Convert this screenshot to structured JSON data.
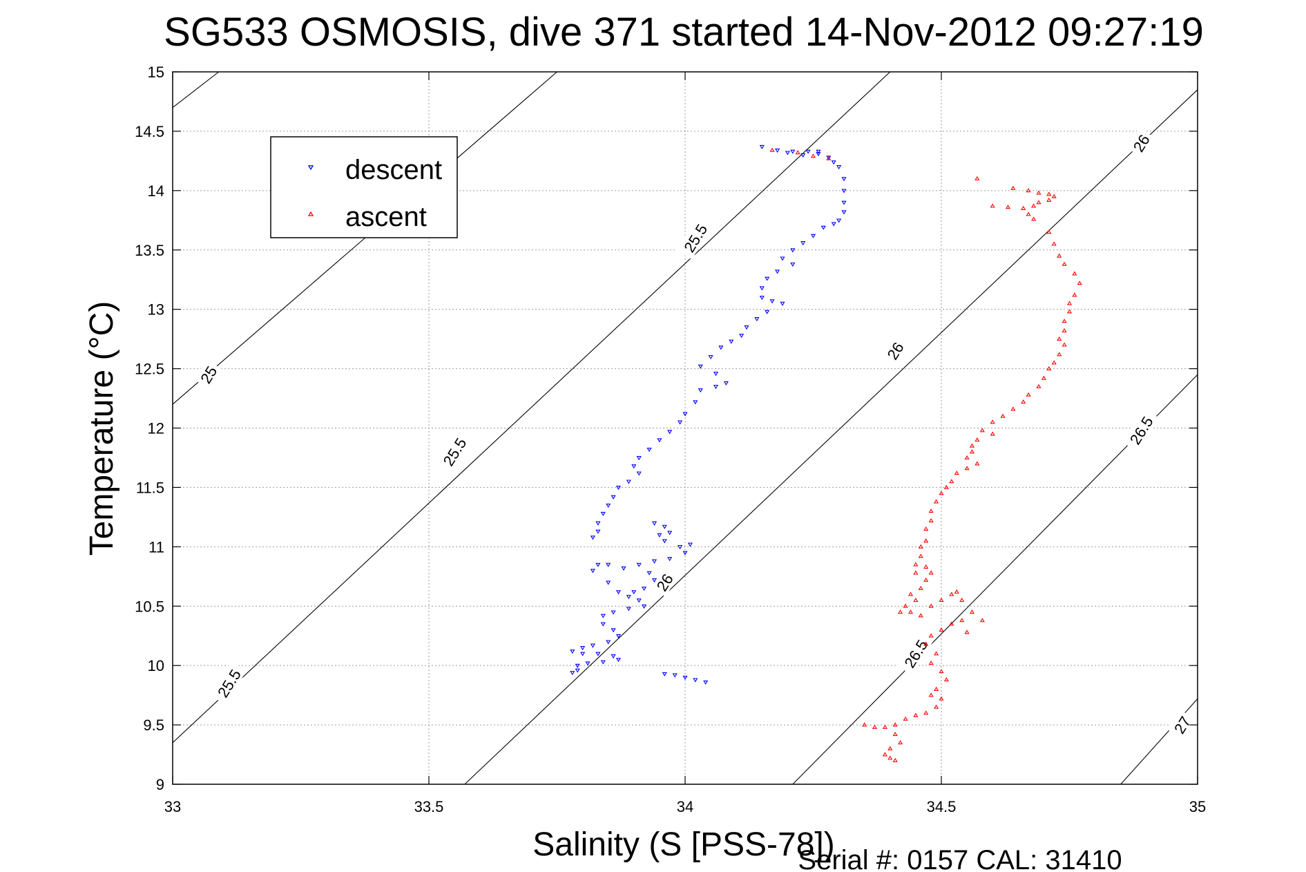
{
  "chart_data": {
    "type": "scatter",
    "title": "SG533 OSMOSIS, dive 371 started 14-Nov-2012 09:27:19",
    "xlabel": "Salinity (S [PSS-78])",
    "ylabel": "Temperature (°C)",
    "xlim": [
      33,
      35
    ],
    "ylim": [
      9,
      15
    ],
    "x_ticks": [
      "33",
      "33.5",
      "34",
      "34.5",
      "35"
    ],
    "y_ticks": [
      "9",
      "9.5",
      "10",
      "10.5",
      "11",
      "11.5",
      "12",
      "12.5",
      "13",
      "13.5",
      "14",
      "14.5",
      "15"
    ],
    "grid": true,
    "legend_position": "top-left",
    "footer": "Serial #: 0157  CAL: 31410",
    "colors": {
      "descent": "#0000ff",
      "ascent": "#ff0000",
      "contour": "#000000",
      "grid": "#9a9a9a"
    },
    "contours": [
      {
        "level": "25",
        "points": [
          [
            33.0,
            14.7
          ],
          [
            33.09,
            15.0
          ]
        ]
      },
      {
        "level": "25",
        "points": [
          [
            33.0,
            12.2
          ],
          [
            33.75,
            15.0
          ]
        ]
      },
      {
        "level": "25.5",
        "points": [
          [
            33.0,
            9.35
          ],
          [
            34.4,
            15.0
          ]
        ]
      },
      {
        "level": "26",
        "points": [
          [
            33.57,
            9.0
          ],
          [
            35.0,
            14.85
          ]
        ]
      },
      {
        "level": "26.5",
        "points": [
          [
            34.21,
            9.0
          ],
          [
            35.0,
            12.45
          ]
        ]
      },
      {
        "level": "27",
        "points": [
          [
            34.85,
            9.0
          ],
          [
            35.0,
            9.72
          ]
        ]
      }
    ],
    "contour_labels": [
      {
        "text": "25",
        "x": 33.07,
        "y": 12.45,
        "angle": -58
      },
      {
        "text": "25.5",
        "x": 33.11,
        "y": 9.85,
        "angle": -58
      },
      {
        "text": "25.5",
        "x": 33.55,
        "y": 11.8,
        "angle": -58
      },
      {
        "text": "25.5",
        "x": 34.02,
        "y": 13.6,
        "angle": -58
      },
      {
        "text": "26",
        "x": 33.96,
        "y": 10.7,
        "angle": -58
      },
      {
        "text": "26",
        "x": 34.41,
        "y": 12.65,
        "angle": -58
      },
      {
        "text": "26",
        "x": 34.89,
        "y": 14.4,
        "angle": -58
      },
      {
        "text": "26.5",
        "x": 34.45,
        "y": 10.1,
        "angle": -58
      },
      {
        "text": "26.5",
        "x": 34.89,
        "y": 11.98,
        "angle": -58
      },
      {
        "text": "27",
        "x": 34.97,
        "y": 9.5,
        "angle": -58
      }
    ],
    "series": [
      {
        "name": "descent",
        "marker": "down-triangle",
        "points": [
          [
            34.15,
            14.37
          ],
          [
            34.18,
            14.34
          ],
          [
            34.21,
            14.33
          ],
          [
            34.24,
            14.33
          ],
          [
            34.26,
            14.31
          ],
          [
            34.28,
            14.28
          ],
          [
            34.29,
            14.24
          ],
          [
            34.3,
            14.2
          ],
          [
            34.31,
            14.1
          ],
          [
            34.31,
            14.0
          ],
          [
            34.31,
            13.9
          ],
          [
            34.31,
            13.82
          ],
          [
            34.3,
            13.75
          ],
          [
            34.29,
            13.72
          ],
          [
            34.27,
            13.69
          ],
          [
            34.25,
            13.62
          ],
          [
            34.23,
            13.56
          ],
          [
            34.21,
            13.5
          ],
          [
            34.19,
            13.43
          ],
          [
            34.21,
            13.38
          ],
          [
            34.18,
            13.32
          ],
          [
            34.16,
            13.26
          ],
          [
            34.15,
            13.18
          ],
          [
            34.15,
            13.1
          ],
          [
            34.17,
            13.07
          ],
          [
            34.19,
            13.05
          ],
          [
            34.16,
            12.98
          ],
          [
            34.14,
            12.92
          ],
          [
            34.12,
            12.85
          ],
          [
            34.11,
            12.78
          ],
          [
            34.09,
            12.73
          ],
          [
            34.07,
            12.68
          ],
          [
            34.05,
            12.6
          ],
          [
            34.03,
            12.52
          ],
          [
            34.06,
            12.46
          ],
          [
            34.08,
            12.38
          ],
          [
            34.06,
            12.35
          ],
          [
            34.03,
            12.32
          ],
          [
            34.02,
            12.22
          ],
          [
            34.0,
            12.12
          ],
          [
            33.99,
            12.05
          ],
          [
            33.97,
            11.97
          ],
          [
            33.95,
            11.9
          ],
          [
            33.93,
            11.82
          ],
          [
            33.91,
            11.75
          ],
          [
            33.9,
            11.68
          ],
          [
            33.91,
            11.62
          ],
          [
            33.89,
            11.55
          ],
          [
            33.87,
            11.5
          ],
          [
            33.86,
            11.42
          ],
          [
            33.85,
            11.35
          ],
          [
            33.84,
            11.28
          ],
          [
            33.83,
            11.2
          ],
          [
            33.83,
            11.13
          ],
          [
            33.82,
            11.08
          ],
          [
            33.94,
            11.2
          ],
          [
            33.96,
            11.17
          ],
          [
            33.97,
            11.12
          ],
          [
            33.95,
            11.1
          ],
          [
            33.96,
            11.05
          ],
          [
            33.99,
            11.0
          ],
          [
            34.01,
            11.02
          ],
          [
            34.0,
            10.95
          ],
          [
            33.97,
            10.9
          ],
          [
            33.94,
            10.88
          ],
          [
            33.91,
            10.85
          ],
          [
            33.88,
            10.82
          ],
          [
            33.85,
            10.85
          ],
          [
            33.83,
            10.85
          ],
          [
            33.82,
            10.8
          ],
          [
            33.85,
            10.7
          ],
          [
            33.87,
            10.62
          ],
          [
            33.89,
            10.58
          ],
          [
            33.91,
            10.55
          ],
          [
            33.92,
            10.5
          ],
          [
            33.89,
            10.48
          ],
          [
            33.86,
            10.45
          ],
          [
            33.84,
            10.42
          ],
          [
            33.84,
            10.35
          ],
          [
            33.86,
            10.3
          ],
          [
            33.87,
            10.25
          ],
          [
            33.85,
            10.2
          ],
          [
            33.82,
            10.17
          ],
          [
            33.8,
            10.15
          ],
          [
            33.78,
            10.12
          ],
          [
            33.8,
            10.1
          ],
          [
            33.83,
            10.1
          ],
          [
            33.86,
            10.08
          ],
          [
            33.87,
            10.05
          ],
          [
            33.84,
            10.03
          ],
          [
            33.81,
            10.02
          ],
          [
            33.79,
            9.96
          ],
          [
            33.78,
            9.94
          ],
          [
            33.79,
            10.0
          ],
          [
            33.96,
            9.93
          ],
          [
            33.98,
            9.92
          ],
          [
            34.0,
            9.9
          ],
          [
            34.02,
            9.88
          ],
          [
            34.04,
            9.86
          ],
          [
            33.93,
            10.78
          ],
          [
            33.94,
            10.72
          ],
          [
            33.92,
            10.65
          ],
          [
            33.9,
            10.62
          ],
          [
            34.2,
            14.32
          ],
          [
            34.23,
            14.3
          ],
          [
            34.26,
            14.33
          ]
        ]
      },
      {
        "name": "ascent",
        "marker": "up-triangle",
        "points": [
          [
            34.57,
            14.1
          ],
          [
            34.64,
            14.02
          ],
          [
            34.67,
            14.0
          ],
          [
            34.69,
            13.98
          ],
          [
            34.71,
            13.97
          ],
          [
            34.72,
            13.95
          ],
          [
            34.71,
            13.92
          ],
          [
            34.69,
            13.9
          ],
          [
            34.68,
            13.87
          ],
          [
            34.66,
            13.85
          ],
          [
            34.63,
            13.86
          ],
          [
            34.6,
            13.87
          ],
          [
            34.67,
            13.8
          ],
          [
            34.68,
            13.76
          ],
          [
            34.71,
            13.65
          ],
          [
            34.72,
            13.55
          ],
          [
            34.73,
            13.45
          ],
          [
            34.74,
            13.38
          ],
          [
            34.76,
            13.3
          ],
          [
            34.77,
            13.22
          ],
          [
            34.76,
            13.12
          ],
          [
            34.75,
            13.05
          ],
          [
            34.75,
            12.98
          ],
          [
            34.74,
            12.9
          ],
          [
            34.74,
            12.82
          ],
          [
            34.73,
            12.75
          ],
          [
            34.74,
            12.7
          ],
          [
            34.73,
            12.62
          ],
          [
            34.72,
            12.55
          ],
          [
            34.71,
            12.5
          ],
          [
            34.7,
            12.42
          ],
          [
            34.69,
            12.35
          ],
          [
            34.67,
            12.28
          ],
          [
            34.66,
            12.22
          ],
          [
            34.64,
            12.16
          ],
          [
            34.62,
            12.1
          ],
          [
            34.6,
            12.05
          ],
          [
            34.58,
            11.98
          ],
          [
            34.6,
            11.95
          ],
          [
            34.57,
            11.9
          ],
          [
            34.56,
            11.85
          ],
          [
            34.56,
            11.8
          ],
          [
            34.55,
            11.75
          ],
          [
            34.57,
            11.7
          ],
          [
            34.55,
            11.66
          ],
          [
            34.53,
            11.62
          ],
          [
            34.52,
            11.55
          ],
          [
            34.51,
            11.5
          ],
          [
            34.5,
            11.45
          ],
          [
            34.49,
            11.38
          ],
          [
            34.48,
            11.3
          ],
          [
            34.48,
            11.22
          ],
          [
            34.47,
            11.15
          ],
          [
            34.47,
            11.05
          ],
          [
            34.46,
            11.0
          ],
          [
            34.46,
            10.92
          ],
          [
            34.45,
            10.85
          ],
          [
            34.45,
            10.78
          ],
          [
            34.47,
            10.72
          ],
          [
            34.46,
            10.65
          ],
          [
            34.44,
            10.6
          ],
          [
            34.45,
            10.55
          ],
          [
            34.43,
            10.5
          ],
          [
            34.44,
            10.45
          ],
          [
            34.46,
            10.42
          ],
          [
            34.48,
            10.5
          ],
          [
            34.5,
            10.55
          ],
          [
            34.52,
            10.6
          ],
          [
            34.54,
            10.55
          ],
          [
            34.56,
            10.45
          ],
          [
            34.54,
            10.38
          ],
          [
            34.52,
            10.35
          ],
          [
            34.5,
            10.3
          ],
          [
            34.48,
            10.25
          ],
          [
            34.47,
            10.18
          ],
          [
            34.49,
            10.1
          ],
          [
            34.48,
            10.02
          ],
          [
            34.5,
            9.95
          ],
          [
            34.51,
            9.88
          ],
          [
            34.49,
            9.8
          ],
          [
            34.48,
            9.75
          ],
          [
            34.5,
            9.72
          ],
          [
            34.49,
            9.65
          ],
          [
            34.47,
            9.6
          ],
          [
            34.45,
            9.58
          ],
          [
            34.43,
            9.55
          ],
          [
            34.41,
            9.5
          ],
          [
            34.39,
            9.48
          ],
          [
            34.37,
            9.48
          ],
          [
            34.35,
            9.5
          ],
          [
            34.41,
            9.42
          ],
          [
            34.42,
            9.35
          ],
          [
            34.4,
            9.3
          ],
          [
            34.39,
            9.25
          ],
          [
            34.4,
            9.22
          ],
          [
            34.41,
            9.2
          ],
          [
            34.22,
            14.32
          ],
          [
            34.25,
            14.29
          ],
          [
            34.28,
            14.27
          ],
          [
            34.17,
            14.34
          ],
          [
            34.55,
            10.28
          ],
          [
            34.58,
            10.38
          ],
          [
            34.48,
            10.78
          ],
          [
            34.47,
            10.83
          ],
          [
            34.42,
            10.45
          ],
          [
            34.53,
            10.62
          ]
        ]
      }
    ]
  }
}
